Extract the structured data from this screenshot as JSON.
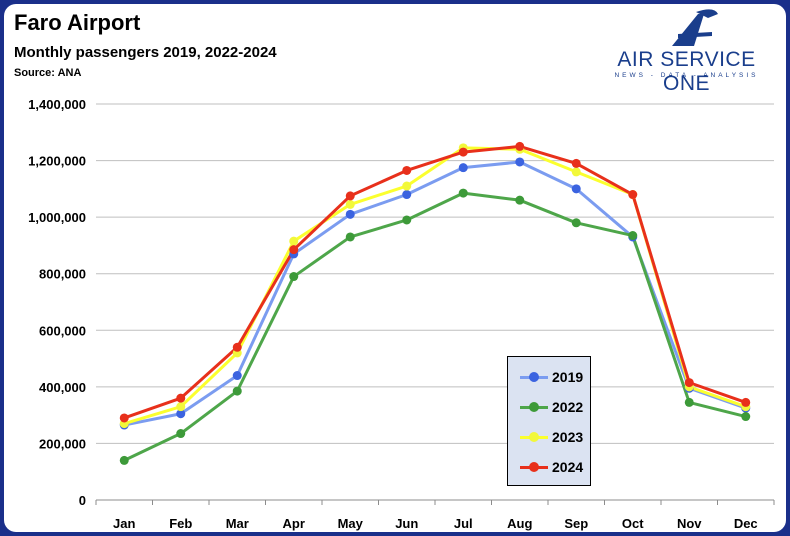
{
  "header": {
    "title": "Faro Airport",
    "subtitle": "Monthly passengers 2019, 2022-2024",
    "source": "Source: ANA"
  },
  "brand": {
    "name": "AIR SERVICE ONE",
    "tagline": "NEWS - DATA - ANALYSIS",
    "logo_icon": "stylized-a-plane-icon",
    "color": "#1a3e8c"
  },
  "chart_data": {
    "type": "line",
    "title": "Faro Airport",
    "subtitle": "Monthly passengers 2019, 2022-2024",
    "xlabel": "",
    "ylabel": "",
    "categories": [
      "Jan",
      "Feb",
      "Mar",
      "Apr",
      "May",
      "Jun",
      "Jul",
      "Aug",
      "Sep",
      "Oct",
      "Nov",
      "Dec"
    ],
    "ylim": [
      0,
      1400000
    ],
    "yticks": [
      0,
      200000,
      400000,
      600000,
      800000,
      1000000,
      1200000,
      1400000
    ],
    "ytick_labels": [
      "0",
      "200,000",
      "400,000",
      "600,000",
      "800,000",
      "1,000,000",
      "1,200,000",
      "1,400,000"
    ],
    "grid": true,
    "legend_position": "bottom-right",
    "series": [
      {
        "name": "2019",
        "color": "#7b9cf0",
        "marker": "#3b63e0",
        "values": [
          265000,
          305000,
          440000,
          870000,
          1010000,
          1080000,
          1175000,
          1195000,
          1100000,
          930000,
          395000,
          325000
        ]
      },
      {
        "name": "2022",
        "color": "#4ea64a",
        "marker": "#3d9a39",
        "values": [
          140000,
          235000,
          385000,
          790000,
          930000,
          990000,
          1085000,
          1060000,
          980000,
          935000,
          345000,
          295000
        ]
      },
      {
        "name": "2023",
        "color": "#fbff2e",
        "marker": "#f2f83a",
        "values": [
          270000,
          330000,
          520000,
          915000,
          1045000,
          1110000,
          1245000,
          1240000,
          1160000,
          1080000,
          400000,
          330000
        ]
      },
      {
        "name": "2024",
        "color": "#e8301b",
        "marker": "#e8301b",
        "values": [
          290000,
          360000,
          540000,
          885000,
          1075000,
          1165000,
          1230000,
          1250000,
          1190000,
          1080000,
          415000,
          345000
        ]
      }
    ]
  }
}
